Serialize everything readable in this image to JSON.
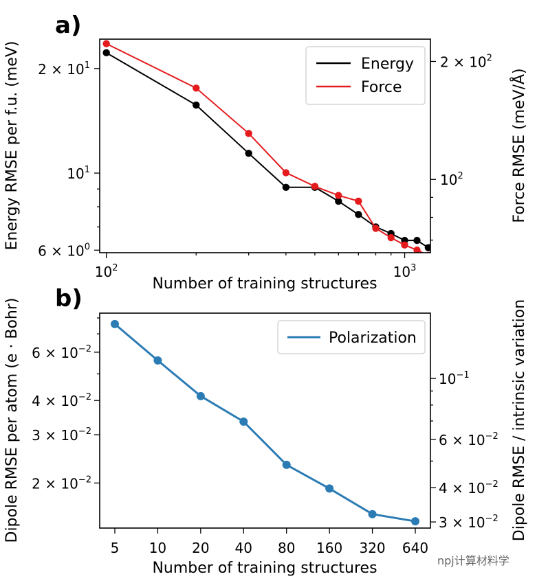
{
  "chart_data": [
    {
      "panel_label": "a)",
      "type": "line",
      "xscale": "log",
      "yscale": "log",
      "grid": false,
      "legend_position": "top-right",
      "xlabel": "Number of training structures",
      "ylabel_left": "Energy RMSE per f.u. (meV)",
      "ylabel_right": "Force RMSE (meV/Å)",
      "xlim": [
        95,
        1220
      ],
      "ylim_left": [
        5.9,
        24.3
      ],
      "ylim_right": [
        65,
        228
      ],
      "x_ticks": [
        {
          "value": 100,
          "base": "10",
          "exp": "2"
        },
        {
          "value": 1000,
          "base": "10",
          "exp": "3"
        }
      ],
      "y_ticks_left": [
        {
          "value": 6,
          "base": "6 × 10",
          "exp": "0"
        },
        {
          "value": 10,
          "base": "10",
          "exp": "1"
        },
        {
          "value": 20,
          "base": "2 × 10",
          "exp": "1"
        }
      ],
      "y_ticks_right": [
        {
          "value": 100,
          "base": "10",
          "exp": "2"
        },
        {
          "value": 200,
          "base": "2 × 10",
          "exp": "2"
        }
      ],
      "series": [
        {
          "name": "Energy",
          "axis": "left",
          "color": "#000000",
          "x": [
            100,
            200,
            300,
            400,
            500,
            600,
            700,
            800,
            900,
            1000,
            1100,
            1200
          ],
          "y": [
            22.2,
            15.7,
            11.4,
            9.1,
            9.1,
            8.3,
            7.6,
            7.0,
            6.7,
            6.4,
            6.4,
            6.1
          ]
        },
        {
          "name": "Force",
          "axis": "right",
          "color": "#e41a1c",
          "x": [
            100,
            200,
            300,
            400,
            500,
            600,
            700,
            800,
            900,
            1000,
            1100,
            1200
          ],
          "y": [
            222,
            171,
            131,
            104,
            96,
            91,
            88,
            75,
            71,
            68,
            66,
            64
          ]
        }
      ]
    },
    {
      "panel_label": "b)",
      "type": "line",
      "xscale": "categorical",
      "yscale": "log",
      "grid": false,
      "legend_position": "top-right",
      "xlabel": "Number of training structures",
      "ylabel_left": "Dipole RMSE per atom (e · Bohr)",
      "ylabel_right": "Dipole RMSE / intrinsic variation",
      "categories": [
        "5",
        "10",
        "20",
        "40",
        "80",
        "160",
        "320",
        "640"
      ],
      "ylim_left": [
        0.0137,
        0.0833
      ],
      "ylim_right": [
        0.0285,
        0.173
      ],
      "y_ticks_left": [
        {
          "value": 0.02,
          "base": "2 × 10",
          "exp": "−2"
        },
        {
          "value": 0.03,
          "base": "3 × 10",
          "exp": "−2"
        },
        {
          "value": 0.04,
          "base": "4 × 10",
          "exp": "−2"
        },
        {
          "value": 0.06,
          "base": "6 × 10",
          "exp": "−2"
        }
      ],
      "y_ticks_right": [
        {
          "value": 0.03,
          "base": "3 × 10",
          "exp": "−2"
        },
        {
          "value": 0.04,
          "base": "4 × 10",
          "exp": "−2"
        },
        {
          "value": 0.06,
          "base": "6 × 10",
          "exp": "−2"
        },
        {
          "value": 0.1,
          "base": "10",
          "exp": "−1"
        }
      ],
      "series": [
        {
          "name": "Polarization",
          "axis": "left",
          "color": "#2b7bb4",
          "values": [
            0.076,
            0.056,
            0.0415,
            0.0335,
            0.0233,
            0.0191,
            0.0154,
            0.0145
          ]
        }
      ]
    }
  ],
  "watermark": "npj计算材料学"
}
